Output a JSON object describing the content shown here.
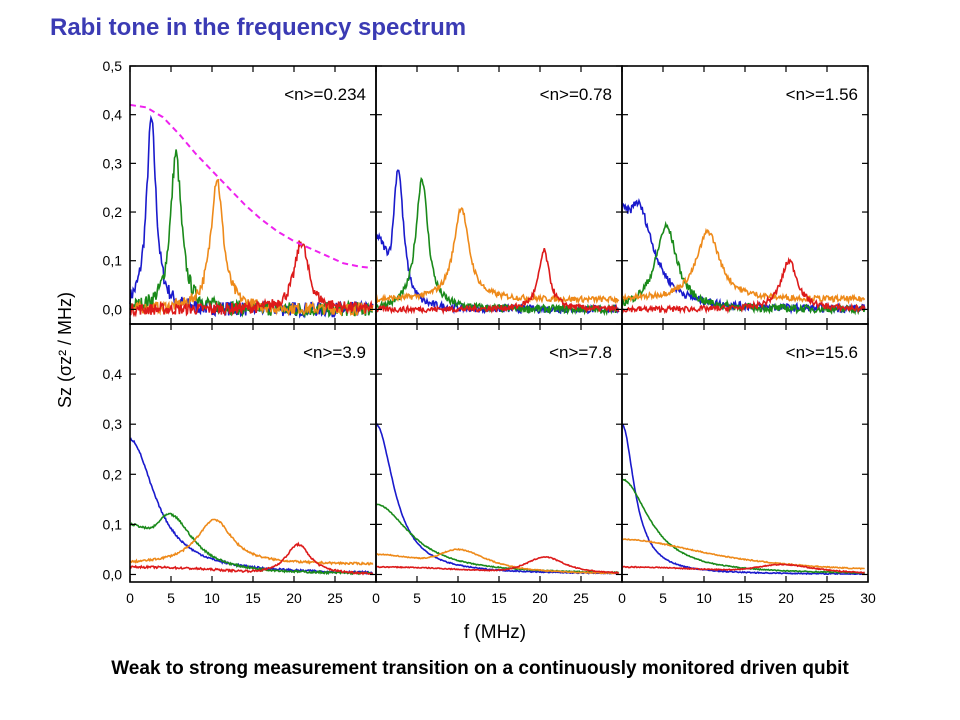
{
  "title": "Rabi tone in the frequency spectrum",
  "caption": "Weak to strong measurement transition on a continuously monitored driven qubit",
  "colors": {
    "title": "#3b3bb4",
    "blue": "#1a1acc",
    "green": "#1a8a1a",
    "orange": "#ee8a1a",
    "red": "#dd1a1a",
    "magenta": "#ee22ee"
  },
  "chart_data": {
    "type": "line",
    "xlabel": "f (MHz)",
    "ylabel": "Sz (σz² / MHz)",
    "xlim": [
      0,
      30
    ],
    "xticks": [
      "0",
      "5",
      "10",
      "15",
      "20",
      "25",
      "30"
    ],
    "yticks_top": [
      "0,0",
      "0,1",
      "0,2",
      "0,3",
      "0,4",
      "0,5"
    ],
    "yticks_bottom": [
      "0,0",
      "0,1",
      "0,2",
      "0,3",
      "0,4"
    ],
    "ylim_top": [
      -0.03,
      0.5
    ],
    "ylim_bottom": [
      -0.015,
      0.5
    ],
    "panels": [
      {
        "label": "<n>=0.234",
        "series": [
          {
            "color": "blue",
            "peak_f": 2.6,
            "peak_h": 0.39,
            "width": 0.7,
            "base": 0.0,
            "noise": 0.015
          },
          {
            "color": "green",
            "peak_f": 5.6,
            "peak_h": 0.32,
            "width": 0.8,
            "base": 0.0,
            "noise": 0.015
          },
          {
            "color": "orange",
            "peak_f": 10.6,
            "peak_h": 0.27,
            "width": 0.9,
            "base": 0.0,
            "noise": 0.012
          },
          {
            "color": "red",
            "peak_f": 20.9,
            "peak_h": 0.14,
            "width": 1.0,
            "base": 0.0,
            "noise": 0.012
          }
        ],
        "envelope": [
          [
            0,
            0.42
          ],
          [
            2,
            0.415
          ],
          [
            4,
            0.395
          ],
          [
            6,
            0.36
          ],
          [
            8,
            0.32
          ],
          [
            10,
            0.285
          ],
          [
            12,
            0.25
          ],
          [
            14,
            0.215
          ],
          [
            16,
            0.185
          ],
          [
            18,
            0.16
          ],
          [
            20,
            0.14
          ],
          [
            22,
            0.125
          ],
          [
            24,
            0.11
          ],
          [
            26,
            0.095
          ],
          [
            28,
            0.088
          ],
          [
            29.5,
            0.085
          ]
        ]
      },
      {
        "label": "<n>=0.78",
        "series": [
          {
            "color": "blue",
            "peak_f": 2.7,
            "peak_h": 0.29,
            "width": 0.8,
            "base": 0.0,
            "noise": 0.008,
            "start": 0.15
          },
          {
            "color": "green",
            "peak_f": 5.6,
            "peak_h": 0.27,
            "width": 0.9,
            "base": 0.0,
            "noise": 0.008
          },
          {
            "color": "orange",
            "peak_f": 10.4,
            "peak_h": 0.19,
            "width": 1.1,
            "base": 0.02,
            "noise": 0.006
          },
          {
            "color": "red",
            "peak_f": 20.5,
            "peak_h": 0.12,
            "width": 0.8,
            "base": 0.0,
            "noise": 0.006
          }
        ]
      },
      {
        "label": "<n>=1.56",
        "series": [
          {
            "color": "blue",
            "peak_f": 1.8,
            "peak_h": 0.22,
            "width": 2.4,
            "base": 0.0,
            "noise": 0.008,
            "start": 0.21
          },
          {
            "color": "green",
            "peak_f": 5.4,
            "peak_h": 0.17,
            "width": 1.6,
            "base": 0.0,
            "noise": 0.008
          },
          {
            "color": "orange",
            "peak_f": 10.5,
            "peak_h": 0.14,
            "width": 1.7,
            "base": 0.02,
            "noise": 0.006
          },
          {
            "color": "red",
            "peak_f": 20.4,
            "peak_h": 0.1,
            "width": 1.2,
            "base": 0.0,
            "noise": 0.006
          }
        ]
      },
      {
        "label": "<n>=3.9",
        "series": [
          {
            "color": "blue",
            "peak_f": 0.0,
            "peak_h": 0.27,
            "width": 3.6,
            "base": 0.0,
            "noise": 0.002
          },
          {
            "color": "green",
            "peak_f": 4.8,
            "peak_h": 0.12,
            "width": 3.5,
            "base": 0.0,
            "noise": 0.002,
            "start": 0.1
          },
          {
            "color": "orange",
            "peak_f": 10.3,
            "peak_h": 0.09,
            "width": 2.6,
            "base": 0.02,
            "noise": 0.002
          },
          {
            "color": "red",
            "peak_f": 20.5,
            "peak_h": 0.06,
            "width": 1.8,
            "base": 0.0,
            "noise": 0.002,
            "start": 0.015
          }
        ]
      },
      {
        "label": "<n>=7.8",
        "series": [
          {
            "color": "blue",
            "peak_f": 0.0,
            "peak_h": 0.3,
            "width": 2.6,
            "base": 0.0,
            "noise": 0.001
          },
          {
            "color": "green",
            "peak_f": 0.0,
            "peak_h": 0.14,
            "width": 5.0,
            "base": 0.0,
            "noise": 0.001
          },
          {
            "color": "orange",
            "peak_f": 10.0,
            "peak_h": 0.05,
            "width": 4.5,
            "base": 0.0,
            "noise": 0.001,
            "start": 0.04
          },
          {
            "color": "red",
            "peak_f": 20.6,
            "peak_h": 0.035,
            "width": 3.0,
            "base": 0.0,
            "noise": 0.001,
            "start": 0.015
          }
        ]
      },
      {
        "label": "<n>=15.6",
        "series": [
          {
            "color": "blue",
            "peak_f": 0.0,
            "peak_h": 0.3,
            "width": 1.8,
            "base": 0.0,
            "noise": 0.001
          },
          {
            "color": "green",
            "peak_f": 0.0,
            "peak_h": 0.19,
            "width": 4.0,
            "base": 0.0,
            "noise": 0.001
          },
          {
            "color": "orange",
            "peak_f": 0.0,
            "peak_h": 0.07,
            "width": 13.0,
            "base": 0.0,
            "noise": 0.001
          },
          {
            "color": "red",
            "peak_f": 19.5,
            "peak_h": 0.02,
            "width": 5.0,
            "base": 0.0,
            "noise": 0.001,
            "start": 0.015
          }
        ]
      }
    ]
  }
}
